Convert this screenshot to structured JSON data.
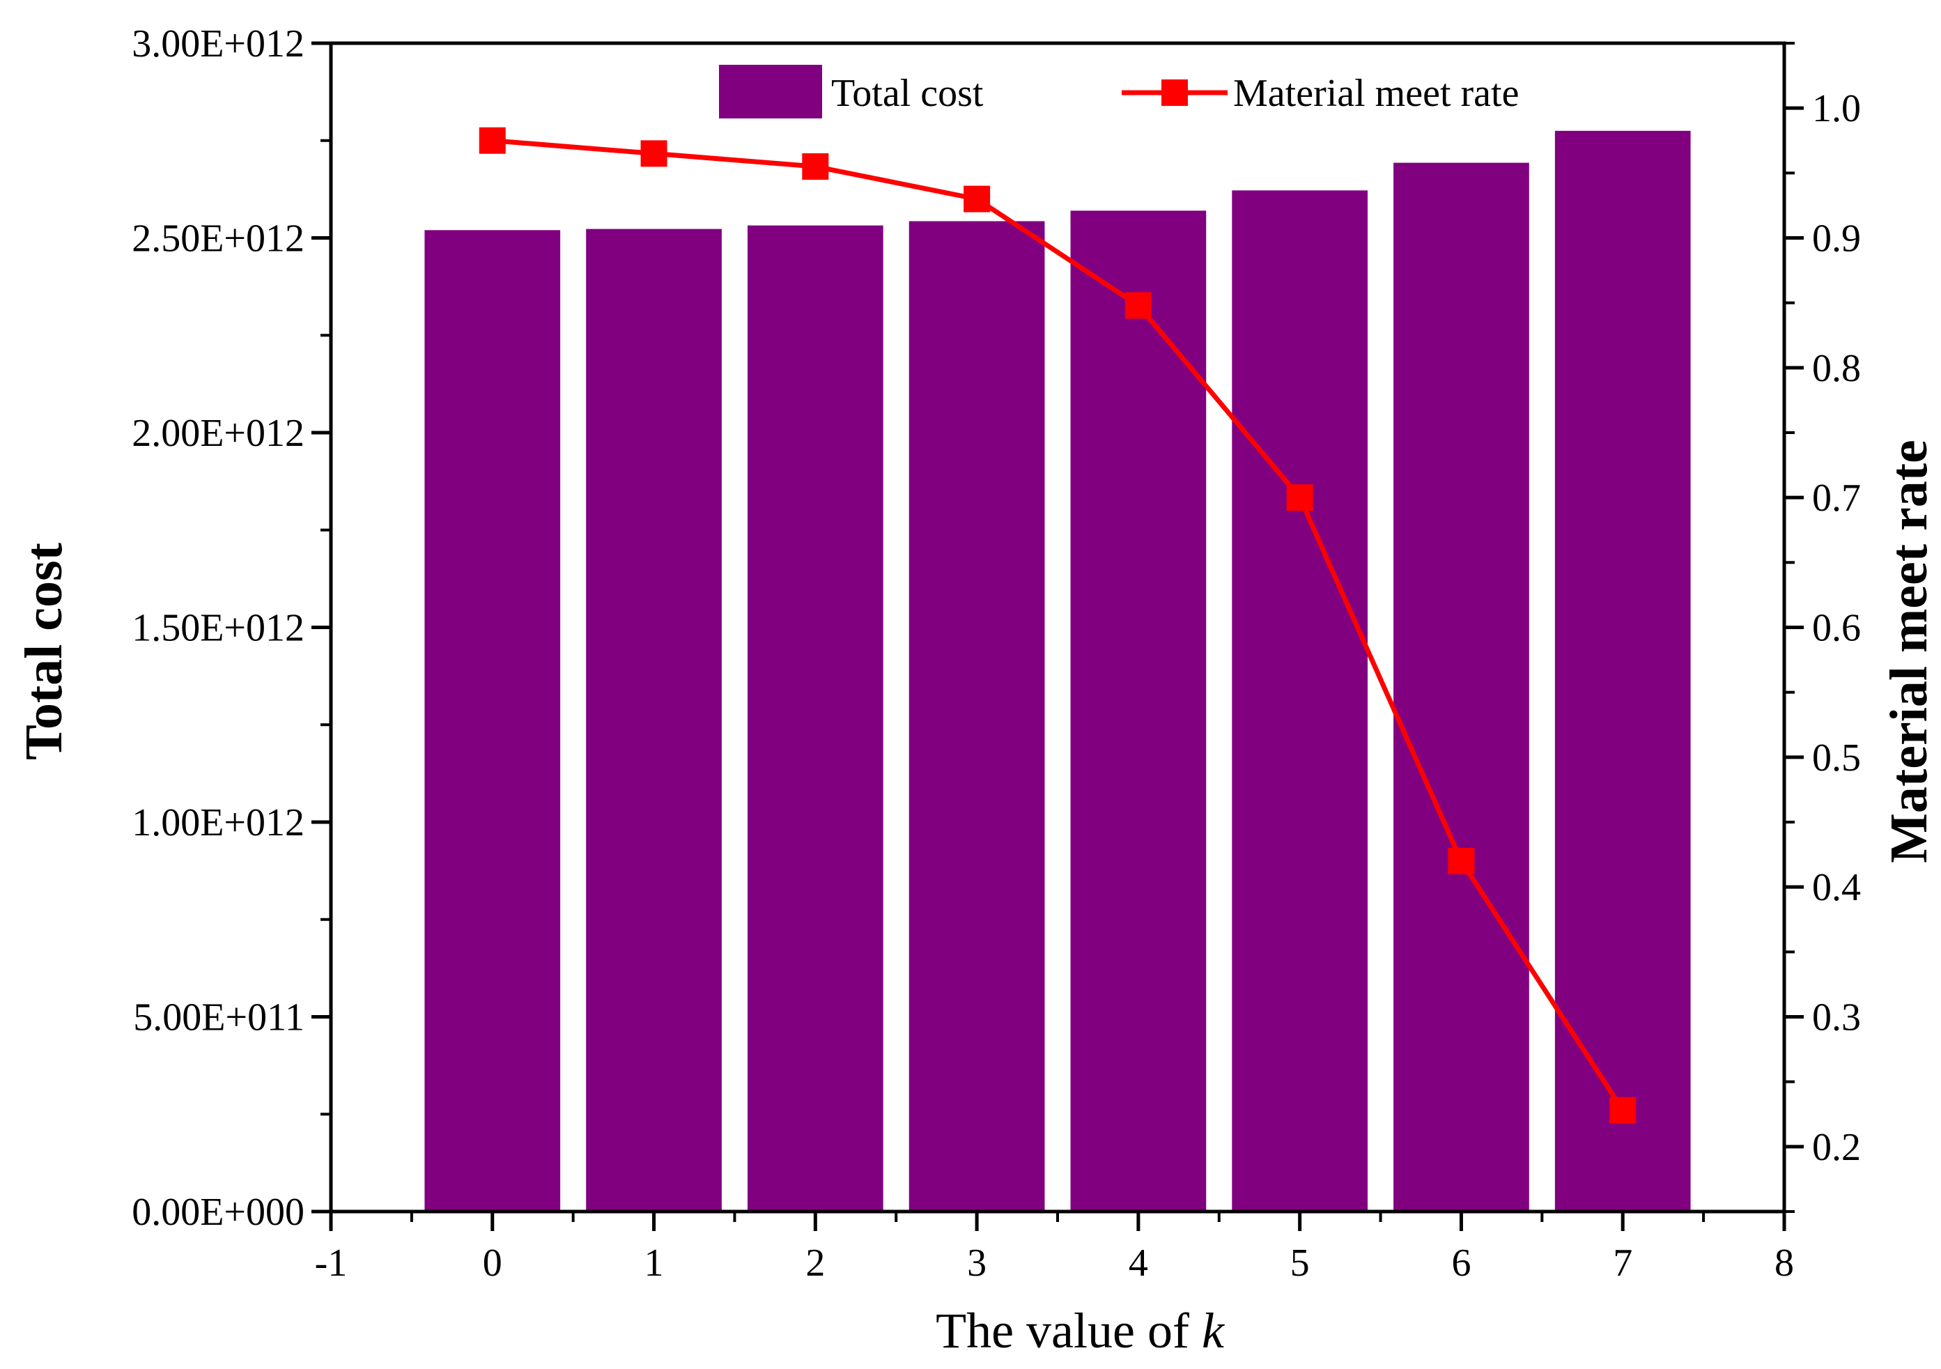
{
  "chart_data": {
    "type": "bar+line",
    "x": [
      0,
      1,
      2,
      3,
      4,
      5,
      6,
      7
    ],
    "series": [
      {
        "name": "Total cost",
        "type": "bar",
        "axis": "left",
        "values": [
          2520000000000.0,
          2523000000000.0,
          2532000000000.0,
          2543000000000.0,
          2570000000000.0,
          2622000000000.0,
          2693000000000.0,
          2775000000000.0
        ],
        "color": "#800080"
      },
      {
        "name": "Material meet rate",
        "type": "line",
        "axis": "right",
        "values": [
          0.975,
          0.965,
          0.955,
          0.93,
          0.848,
          0.7,
          0.42,
          0.228
        ],
        "color": "#ff0000",
        "marker": "square"
      }
    ],
    "xlim": [
      -1,
      8
    ],
    "xticks": [
      "-1",
      "0",
      "1",
      "2",
      "3",
      "4",
      "5",
      "6",
      "7",
      "8"
    ],
    "ylim_left": [
      0,
      3000000000000.0
    ],
    "yticks_left": [
      "0.00E+000",
      "5.00E+011",
      "1.00E+012",
      "1.50E+012",
      "2.00E+012",
      "2.50E+012",
      "3.00E+012"
    ],
    "ylim_right": [
      0.15,
      1.05
    ],
    "yticks_right": [
      "0.2",
      "0.3",
      "0.4",
      "0.5",
      "0.6",
      "0.7",
      "0.8",
      "0.9",
      "1.0"
    ],
    "xlabel_prefix": "The value of ",
    "xlabel_var": "k",
    "ylabel_left": "Total cost",
    "ylabel_right": "Material meet rate",
    "legend_position": "top"
  }
}
